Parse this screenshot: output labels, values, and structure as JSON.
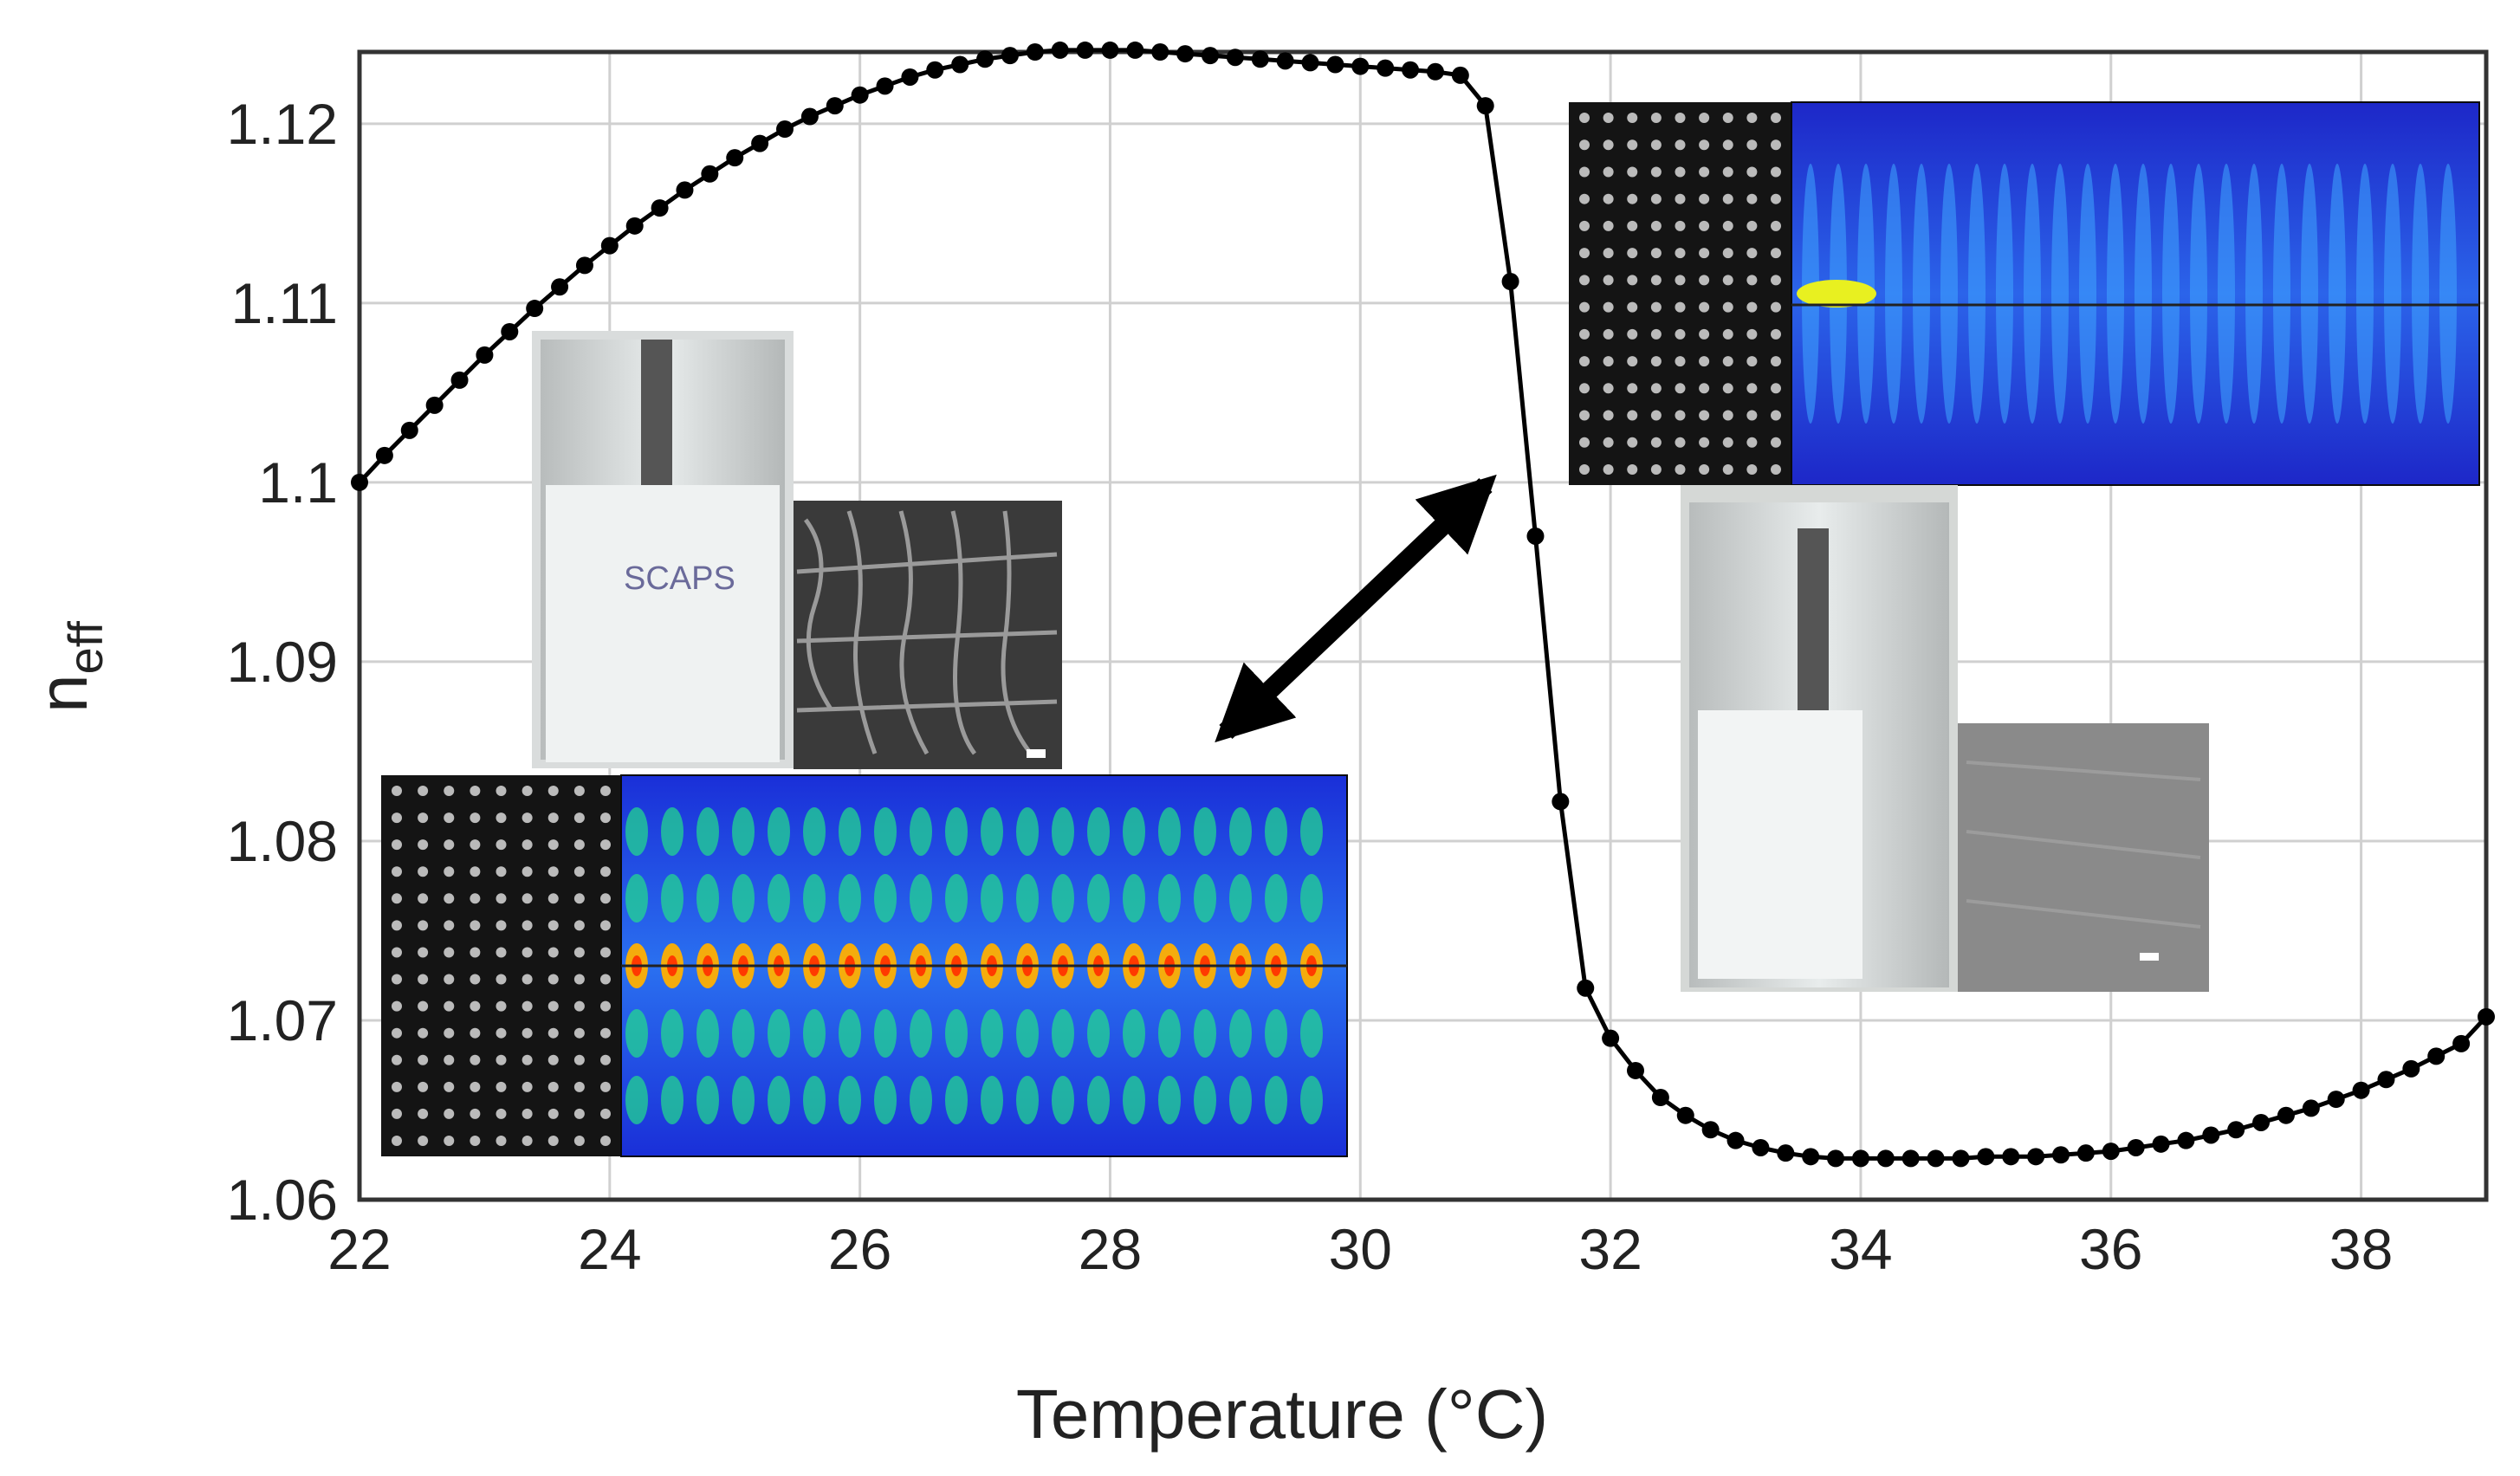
{
  "chart_data": {
    "type": "line",
    "xlabel": "Temperature (°C)",
    "ylabel": {
      "main": "n",
      "subscript": "eff"
    },
    "xlim": [
      22,
      39
    ],
    "ylim": [
      1.06,
      1.124
    ],
    "xticks": [
      "22",
      "24",
      "26",
      "28",
      "30",
      "32",
      "34",
      "36",
      "38"
    ],
    "yticks": [
      "1.06",
      "1.07",
      "1.08",
      "1.09",
      "1.1",
      "1.11",
      "1.12"
    ],
    "grid": true,
    "colors": {
      "line": "#000000",
      "marker": "#000000",
      "grid": "#d0d0d0",
      "frame": "#333333"
    },
    "series": [
      {
        "x": [
          22.0,
          22.2,
          22.4,
          22.6,
          22.8,
          23.0,
          23.2,
          23.4,
          23.6,
          23.8,
          24.0,
          24.2,
          24.4,
          24.6,
          24.8,
          25.0,
          25.2,
          25.4,
          25.6,
          25.8,
          26.0,
          26.2,
          26.4,
          26.6,
          26.8,
          27.0,
          27.2,
          27.4,
          27.6,
          27.8,
          28.0,
          28.2,
          28.4,
          28.6,
          28.8,
          29.0,
          29.2,
          29.4,
          29.6,
          29.8,
          30.0,
          30.2,
          30.4,
          30.6,
          30.8,
          31.0,
          31.2,
          31.4,
          31.6,
          31.8,
          32.0,
          32.2,
          32.4,
          32.6,
          32.8,
          33.0,
          33.2,
          33.4,
          33.6,
          33.8,
          34.0,
          34.2,
          34.4,
          34.6,
          34.8,
          35.0,
          35.2,
          35.4,
          35.6,
          35.8,
          36.0,
          36.2,
          36.4,
          36.6,
          36.8,
          37.0,
          37.2,
          37.4,
          37.6,
          37.8,
          38.0,
          38.2,
          38.4,
          38.6,
          38.8,
          39.0
        ],
        "y": [
          1.1,
          1.1015,
          1.1029,
          1.1043,
          1.1057,
          1.1071,
          1.1084,
          1.1097,
          1.1109,
          1.1121,
          1.1132,
          1.1143,
          1.1153,
          1.1163,
          1.1172,
          1.1181,
          1.1189,
          1.1197,
          1.1204,
          1.121,
          1.1216,
          1.1221,
          1.1226,
          1.123,
          1.1233,
          1.1236,
          1.1238,
          1.124,
          1.1241,
          1.1241,
          1.1241,
          1.1241,
          1.124,
          1.1239,
          1.1238,
          1.1237,
          1.1236,
          1.1235,
          1.1234,
          1.1233,
          1.1232,
          1.1231,
          1.123,
          1.1229,
          1.1227,
          1.121,
          1.1112,
          1.097,
          1.0822,
          1.0718,
          1.069,
          1.0672,
          1.0657,
          1.0647,
          1.0639,
          1.0633,
          1.0629,
          1.0626,
          1.0624,
          1.0623,
          1.0623,
          1.0623,
          1.0623,
          1.0623,
          1.0623,
          1.0624,
          1.0624,
          1.0624,
          1.0625,
          1.0626,
          1.0627,
          1.0629,
          1.0631,
          1.0633,
          1.0636,
          1.0639,
          1.0643,
          1.0647,
          1.0651,
          1.0656,
          1.0661,
          1.0667,
          1.0673,
          1.068,
          1.0687,
          1.0702
        ]
      }
    ]
  },
  "insets": {
    "annotation": "double-headed-arrow",
    "cold_state": {
      "photo_vial": "vial-photo-opaque",
      "photo_sem": "sem-image-porous",
      "sample_tag": "SCAPS",
      "field_map": "field-map-focused"
    },
    "hot_state": {
      "photo_vial": "vial-photo-collapsed",
      "photo_sem": "sem-image-smooth",
      "field_map": "field-map-diverging"
    }
  }
}
